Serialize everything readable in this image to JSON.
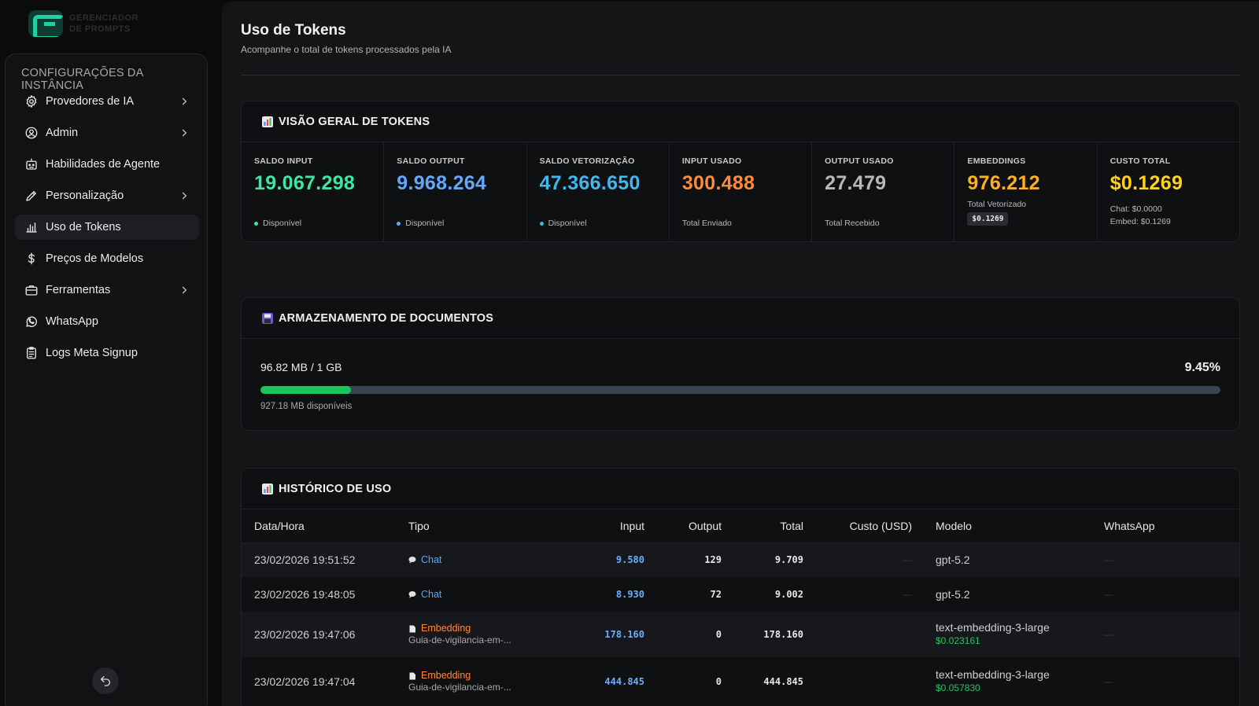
{
  "logo": {
    "line1": "GERENCIADOR",
    "line2": "DE PROMPTS"
  },
  "sidebar": {
    "title": "CONFIGURAÇÕES DA INSTÂNCIA",
    "items": [
      {
        "label": "Provedores de IA",
        "icon": "gear-icon",
        "has_chevron": true
      },
      {
        "label": "Admin",
        "icon": "user-gear-icon",
        "has_chevron": true
      },
      {
        "label": "Habilidades de Agente",
        "icon": "robot-icon",
        "has_chevron": false
      },
      {
        "label": "Personalização",
        "icon": "pen-icon",
        "has_chevron": true
      },
      {
        "label": "Uso de Tokens",
        "icon": "bar-chart-icon",
        "has_chevron": false,
        "active": true
      },
      {
        "label": "Preços de Modelos",
        "icon": "dollar-icon",
        "has_chevron": false
      },
      {
        "label": "Ferramentas",
        "icon": "briefcase-icon",
        "has_chevron": true
      },
      {
        "label": "WhatsApp",
        "icon": "whatsapp-icon",
        "has_chevron": false
      },
      {
        "label": "Logs Meta Signup",
        "icon": "clipboard-icon",
        "has_chevron": false
      }
    ]
  },
  "header": {
    "title": "Uso de Tokens",
    "subtitle": "Acompanhe o total de tokens processados pela IA"
  },
  "overview": {
    "title": "VISÃO GERAL DE TOKENS",
    "stats": [
      {
        "label": "SALDO INPUT",
        "value": "19.067.298",
        "color": "#3ee6a4",
        "foot": "Disponível",
        "dot": "#3ee6a4"
      },
      {
        "label": "SALDO OUTPUT",
        "value": "9.968.264",
        "color": "#62a8ff",
        "foot": "Disponível",
        "dot": "#62a8ff"
      },
      {
        "label": "SALDO VETORIZAÇÃO",
        "value": "47.366.650",
        "color": "#3fb8ef",
        "foot": "Disponível",
        "dot": "#3fb8ef"
      },
      {
        "label": "INPUT USADO",
        "value": "300.488",
        "color": "#ff8a3d",
        "foot": "Total Enviado"
      },
      {
        "label": "OUTPUT USADO",
        "value": "27.479",
        "color": "#b8b8b8",
        "foot": "Total Recebido"
      },
      {
        "label": "EMBEDDINGS",
        "value": "976.212",
        "color": "#ffb020",
        "sub": "Total Vetorizado",
        "badge": "$0.1269"
      },
      {
        "label": "CUSTO TOTAL",
        "value": "$0.1269",
        "color": "#ffd21f",
        "line1": "Chat: $0.0000",
        "line2": "Embed: $0.1269"
      }
    ]
  },
  "storage": {
    "title": "ARMAZENAMENTO DE DOCUMENTOS",
    "used": "96.82 MB / 1 GB",
    "percent_label": "9.45%",
    "percent": 9.45,
    "free": "927.18 MB disponíveis"
  },
  "history": {
    "title": "HISTÓRICO DE USO",
    "columns": [
      "Data/Hora",
      "Tipo",
      "Input",
      "Output",
      "Total",
      "Custo (USD)",
      "Modelo",
      "WhatsApp"
    ],
    "rows": [
      {
        "date": "23/02/2026 19:51:52",
        "type": "Chat",
        "kind": "chat",
        "doc": "",
        "input": "9.580",
        "output": "129",
        "total": "9.709",
        "cost": "—",
        "model": "gpt-5.2",
        "model_cost": "",
        "whatsapp": "—"
      },
      {
        "date": "23/02/2026 19:48:05",
        "type": "Chat",
        "kind": "chat",
        "doc": "",
        "input": "8.930",
        "output": "72",
        "total": "9.002",
        "cost": "—",
        "model": "gpt-5.2",
        "model_cost": "",
        "whatsapp": "—"
      },
      {
        "date": "23/02/2026 19:47:06",
        "type": "Embedding",
        "kind": "emb",
        "doc": "Guia-de-vigilancia-em-...",
        "input": "178.160",
        "output": "0",
        "total": "178.160",
        "cost": "",
        "model": "text-embedding-3-large",
        "model_cost": "$0.023161",
        "whatsapp": "—"
      },
      {
        "date": "23/02/2026 19:47:04",
        "type": "Embedding",
        "kind": "emb",
        "doc": "Guia-de-vigilancia-em-...",
        "input": "444.845",
        "output": "0",
        "total": "444.845",
        "cost": "",
        "model": "text-embedding-3-large",
        "model_cost": "$0.057830",
        "whatsapp": "—"
      }
    ]
  }
}
